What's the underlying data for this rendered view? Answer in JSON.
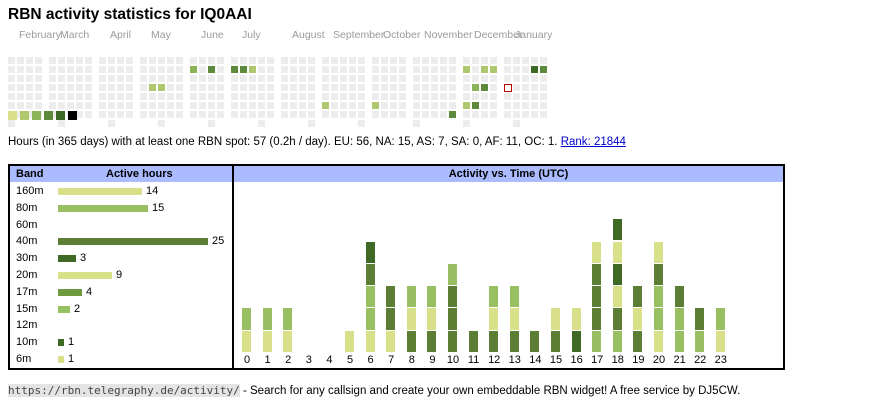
{
  "title": "RBN activity statistics for IQ0AAI",
  "months": [
    "February",
    "March",
    "April",
    "May",
    "June",
    "July",
    "August",
    "September",
    "October",
    "November",
    "December",
    "January"
  ],
  "colors": {
    "empty": "#ececec",
    "levels": [
      "#d9e08a",
      "#afc86e",
      "#8ab456",
      "#5c8a3a",
      "#3c6a26",
      "#000000"
    ],
    "header": "#aabbff",
    "today_border": "#c00000",
    "hour_segments": [
      "#d9e08a",
      "#99bf63",
      "#5c7d34",
      "#3e6a26"
    ]
  },
  "calendar_activity": [
    {
      "week": 18,
      "day": 1,
      "level": 2
    },
    {
      "week": 20,
      "day": 1,
      "level": 3
    },
    {
      "week": 22,
      "day": 1,
      "level": 3
    },
    {
      "week": 23,
      "day": 1,
      "level": 3
    },
    {
      "week": 24,
      "day": 1,
      "level": 1
    },
    {
      "week": 14,
      "day": 3,
      "level": 1
    },
    {
      "week": 15,
      "day": 3,
      "level": 1
    },
    {
      "week": 31,
      "day": 5,
      "level": 1
    },
    {
      "week": 36,
      "day": 5,
      "level": 1
    },
    {
      "week": 44,
      "day": 6,
      "level": 3
    },
    {
      "week": 45,
      "day": 1,
      "level": 1
    },
    {
      "week": 46,
      "day": 3,
      "level": 2
    },
    {
      "week": 47,
      "day": 3,
      "level": 3
    },
    {
      "week": 46,
      "day": 5,
      "level": 3
    },
    {
      "week": 45,
      "day": 5,
      "level": 1
    },
    {
      "week": 47,
      "day": 1,
      "level": 1
    },
    {
      "week": 48,
      "day": 1,
      "level": 1
    },
    {
      "week": 52,
      "day": 1,
      "level": 4
    },
    {
      "week": 53,
      "day": 1,
      "level": 3
    }
  ],
  "today_cell": {
    "week": 49,
    "day": 3
  },
  "summary": {
    "text": "Hours (in 365 days) with at least one RBN spot: 57 (0.2h / day). EU: 56, NA: 15, AS: 7, SA: 0, AF: 11, OC: 1.",
    "rank_label": "Rank: 21844"
  },
  "band_table": {
    "header_band": "Band",
    "header_hours": "Active hours",
    "rows": [
      {
        "band": "160m",
        "hours": 14,
        "color": "#d9e08a"
      },
      {
        "band": "80m",
        "hours": 15,
        "color": "#99bf63"
      },
      {
        "band": "60m",
        "hours": null,
        "color": "#99bf63"
      },
      {
        "band": "40m",
        "hours": 25,
        "color": "#5c7d34"
      },
      {
        "band": "30m",
        "hours": 3,
        "color": "#3e6a26"
      },
      {
        "band": "20m",
        "hours": 9,
        "color": "#d9e08a"
      },
      {
        "band": "17m",
        "hours": 4,
        "color": "#6d9a3f"
      },
      {
        "band": "15m",
        "hours": 2,
        "color": "#99bf63"
      },
      {
        "band": "12m",
        "hours": null,
        "color": "#99bf63"
      },
      {
        "band": "10m",
        "hours": 1,
        "color": "#3e6a26"
      },
      {
        "band": "6m",
        "hours": 1,
        "color": "#d9e08a"
      }
    ]
  },
  "chart_data": {
    "type": "bar",
    "title": "Activity vs. Time (UTC)",
    "categories": [
      "0",
      "1",
      "2",
      "3",
      "4",
      "5",
      "6",
      "7",
      "8",
      "9",
      "10",
      "11",
      "12",
      "13",
      "14",
      "15",
      "16",
      "17",
      "18",
      "19",
      "20",
      "21",
      "22",
      "23"
    ],
    "stacked_segments": [
      [
        0,
        1
      ],
      [
        0,
        1
      ],
      [
        0,
        1
      ],
      [],
      [],
      [
        0
      ],
      [
        0,
        1,
        1,
        2,
        3
      ],
      [
        0,
        2,
        2
      ],
      [
        2,
        0,
        1
      ],
      [
        2,
        0,
        1
      ],
      [
        2,
        2,
        2,
        1
      ],
      [
        2
      ],
      [
        2,
        0,
        1
      ],
      [
        2,
        0,
        1
      ],
      [
        2
      ],
      [
        2,
        0
      ],
      [
        3,
        0
      ],
      [
        1,
        2,
        2,
        2,
        0
      ],
      [
        1,
        2,
        0,
        3,
        0,
        3
      ],
      [
        2,
        0,
        2
      ],
      [
        0,
        1,
        1,
        2,
        0
      ],
      [
        1,
        1,
        2
      ],
      [
        1,
        2
      ],
      [
        0,
        1
      ]
    ],
    "segment_units": 1,
    "ylim": [
      0,
      7
    ]
  },
  "footer": {
    "url": "https://rbn.telegraphy.de/activity/",
    "text": " - Search for any callsign and create your own embeddable RBN widget! A free service by DJ5CW."
  }
}
